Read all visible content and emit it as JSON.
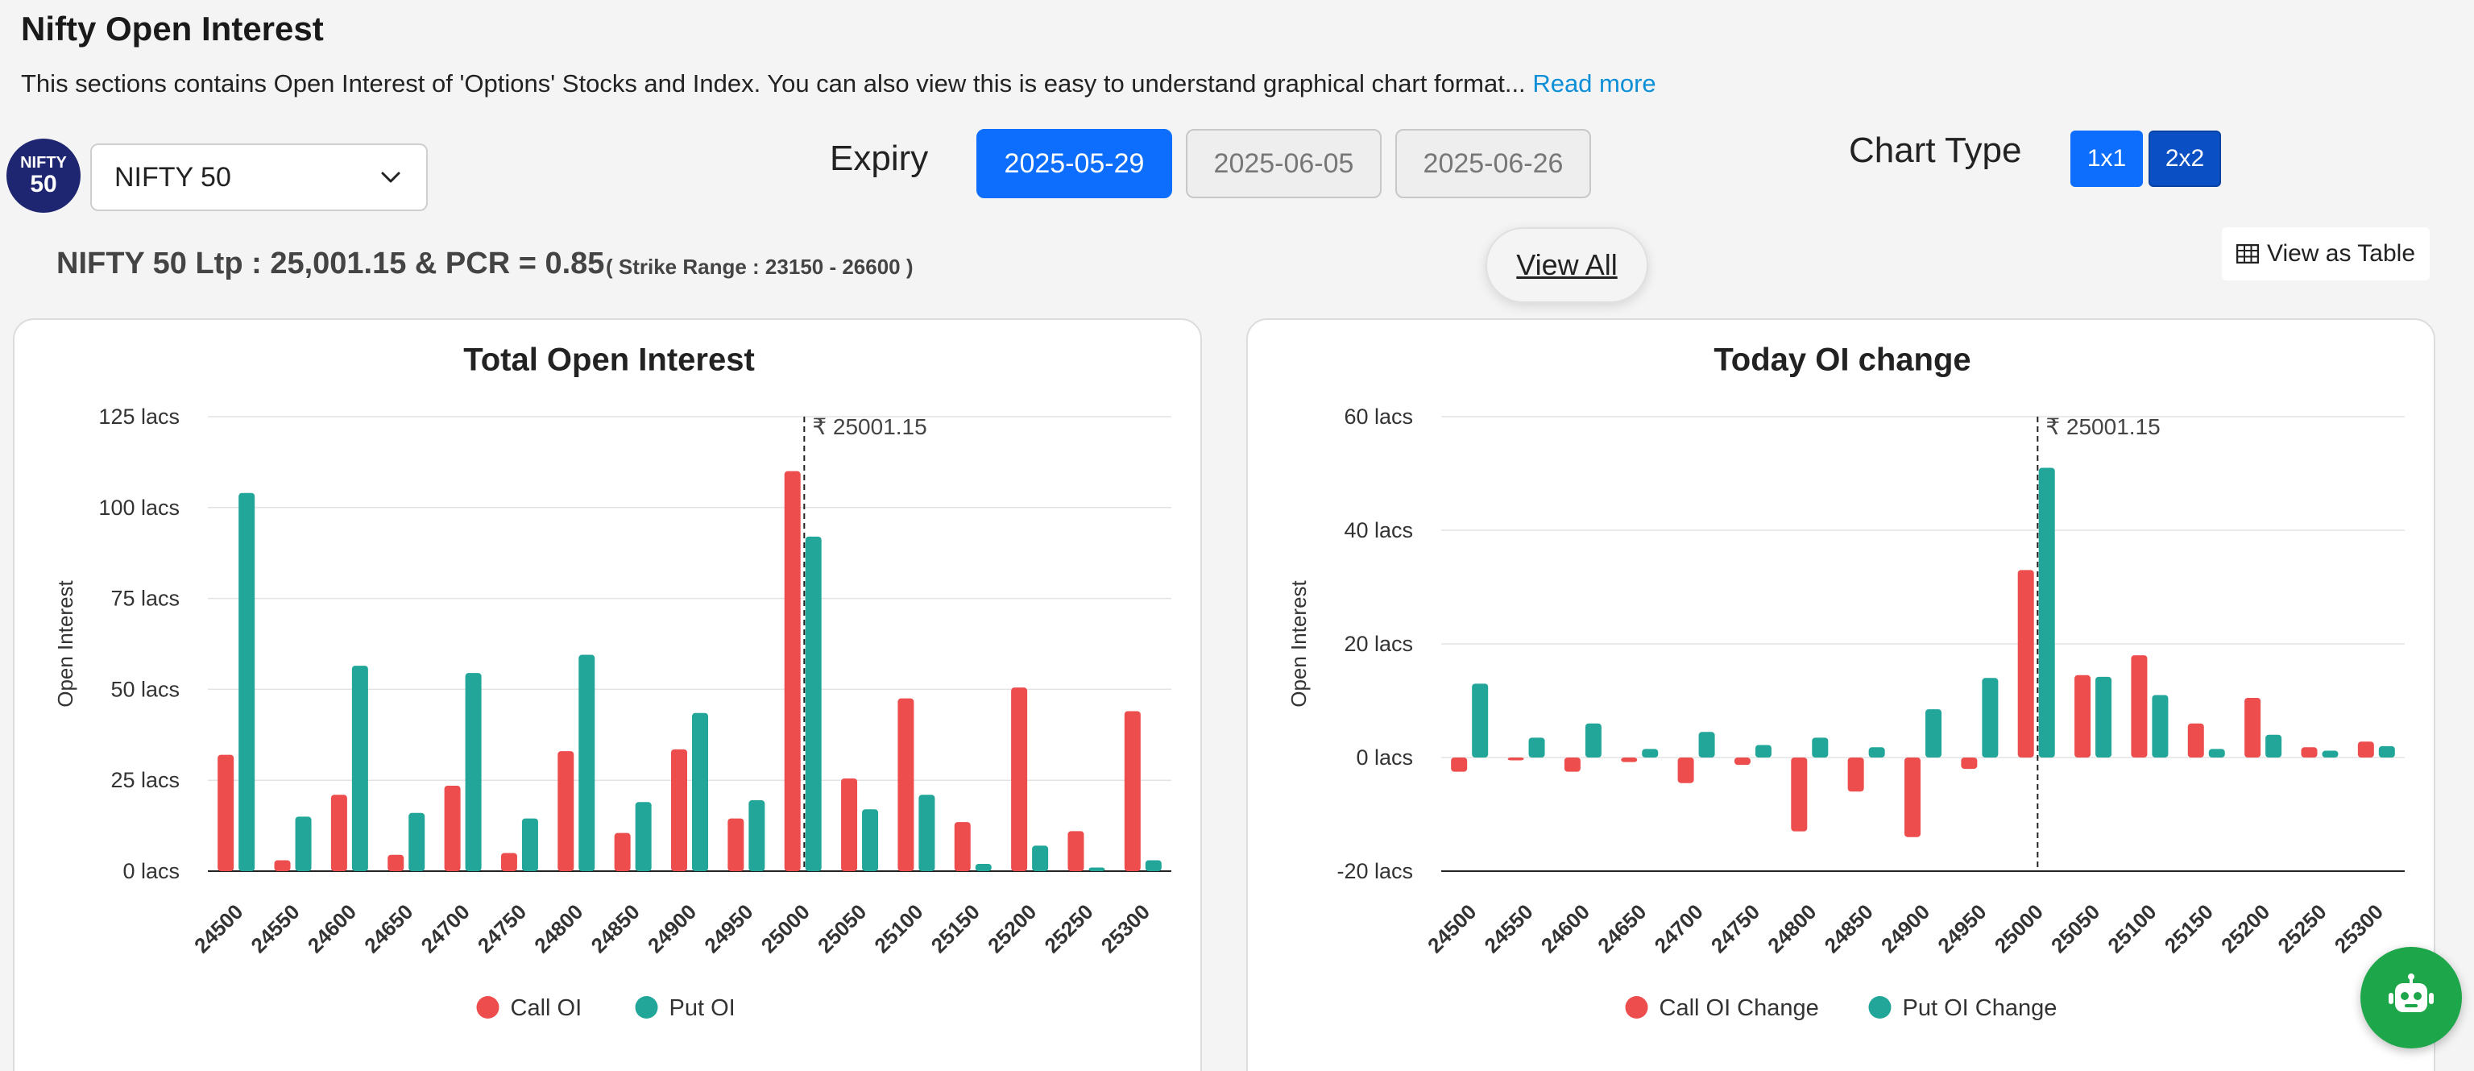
{
  "header": {
    "title": "Nifty Open Interest",
    "description": "This sections contains Open Interest of 'Options' Stocks and Index. You can also view this is easy to understand graphical chart format...",
    "read_more": "Read more"
  },
  "logo": {
    "line1": "NIFTY",
    "line2": "50"
  },
  "symbol_select": {
    "value": "NIFTY 50"
  },
  "expiry": {
    "label": "Expiry",
    "options": [
      "2025-05-29",
      "2025-06-05",
      "2025-06-26"
    ],
    "selected": "2025-05-29"
  },
  "chart_type": {
    "label": "Chart Type",
    "options": [
      "1x1",
      "2x2"
    ],
    "selected": "2x2"
  },
  "summary": {
    "ltp_text": "NIFTY 50 Ltp : 25,001.15 & PCR = 0.85",
    "strike_range": "( Strike Range : 23150 - 26600 )"
  },
  "buttons": {
    "view_all": "View All",
    "view_table": "View as Table"
  },
  "colors": {
    "call": "#ee4d4d",
    "put": "#22a699",
    "primary": "#0d6efd",
    "primary_dark": "#0a4fc4",
    "fab": "#1ea64a"
  },
  "chart_data": [
    {
      "type": "bar",
      "title": "Total Open Interest",
      "ylabel": "Open Interest",
      "xlabel": "",
      "ylim": [
        0,
        125
      ],
      "yticks": [
        0,
        25,
        50,
        75,
        100,
        125
      ],
      "tick_suffix": " lacs",
      "categories": [
        "24500",
        "24550",
        "24600",
        "24650",
        "24700",
        "24750",
        "24800",
        "24850",
        "24900",
        "24950",
        "25000",
        "25050",
        "25100",
        "25150",
        "25200",
        "25250",
        "25300"
      ],
      "series": [
        {
          "name": "Call OI",
          "values": [
            32,
            3,
            21,
            4.5,
            23.5,
            5,
            33,
            10.5,
            33.5,
            14.5,
            110,
            25.5,
            47.5,
            13.5,
            50.5,
            11,
            44
          ]
        },
        {
          "name": "Put OI",
          "values": [
            104,
            15,
            56.5,
            16,
            54.5,
            14.5,
            59.5,
            19,
            43.5,
            19.5,
            92,
            17,
            21,
            2,
            7,
            1,
            3
          ]
        }
      ],
      "ltp_marker": {
        "position": 25001.15,
        "label": "₹ 25001.15"
      },
      "legend": "bottom",
      "grid": true
    },
    {
      "type": "bar",
      "title": "Today OI change",
      "ylabel": "Open Interest",
      "xlabel": "",
      "ylim": [
        -20,
        60
      ],
      "yticks": [
        -20,
        0,
        20,
        40,
        60
      ],
      "tick_suffix": " lacs",
      "categories": [
        "24500",
        "24550",
        "24600",
        "24650",
        "24700",
        "24750",
        "24800",
        "24850",
        "24900",
        "24950",
        "25000",
        "25050",
        "25100",
        "25150",
        "25200",
        "25250",
        "25300"
      ],
      "series": [
        {
          "name": "Call OI Change",
          "values": [
            -2.5,
            -0.5,
            -2.5,
            -0.8,
            -4.5,
            -1.3,
            -13,
            -6,
            -14,
            -2,
            33,
            14.5,
            18,
            6,
            10.5,
            1.8,
            2.8
          ]
        },
        {
          "name": "Put OI Change",
          "values": [
            13,
            3.5,
            6,
            1.5,
            4.5,
            2.2,
            3.5,
            1.8,
            8.5,
            14,
            51,
            14.2,
            11,
            1.5,
            4,
            1.2,
            2
          ]
        }
      ],
      "ltp_marker": {
        "position": 25001.15,
        "label": "₹ 25001.15"
      },
      "legend": "bottom",
      "grid": true
    }
  ]
}
